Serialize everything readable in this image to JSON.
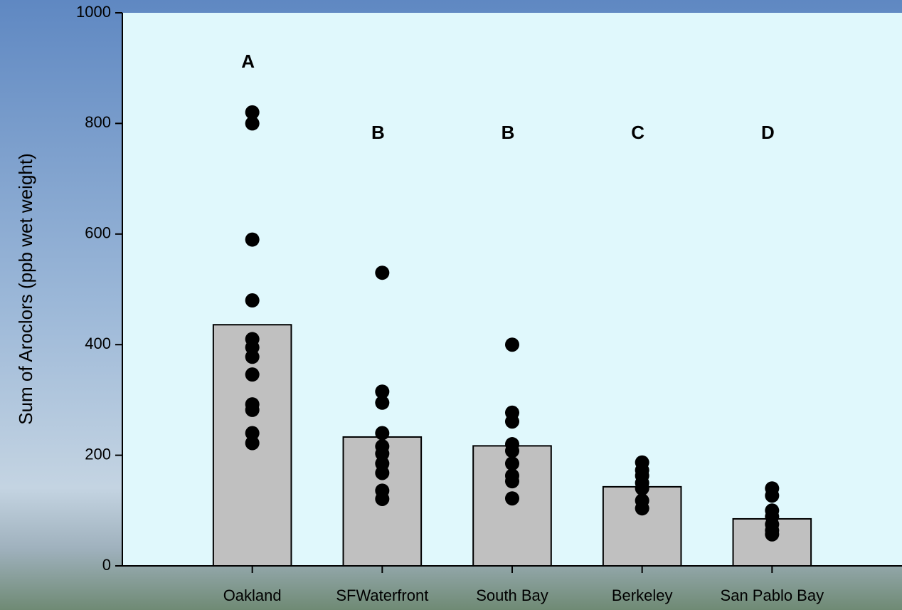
{
  "chart_data": {
    "type": "bar",
    "y_label": "Sum of Aroclors (ppb wet weight)",
    "categories": [
      "Oakland",
      "SFWaterfront",
      "South Bay",
      "Berkeley",
      "San Pablo Bay"
    ],
    "values": [
      436,
      233,
      217,
      143,
      85
    ],
    "color": "#c0c0c0",
    "points": [
      [
        820,
        800,
        590,
        480,
        410,
        395,
        378,
        346,
        292,
        282,
        240,
        222
      ],
      [
        530,
        315,
        295,
        240,
        216,
        203,
        185,
        168,
        136,
        121
      ],
      [
        400,
        277,
        261,
        220,
        208,
        185,
        163,
        153,
        122
      ],
      [
        187,
        173,
        163,
        150,
        140,
        118,
        104
      ],
      [
        140,
        127,
        100,
        89,
        75,
        64,
        57
      ]
    ],
    "point_color": "#000000",
    "annotations": [
      "A",
      "B",
      "B",
      "C",
      "D"
    ],
    "ylim": [
      0,
      1000
    ],
    "yticks": [
      0,
      200,
      400,
      600,
      800,
      1000
    ]
  }
}
